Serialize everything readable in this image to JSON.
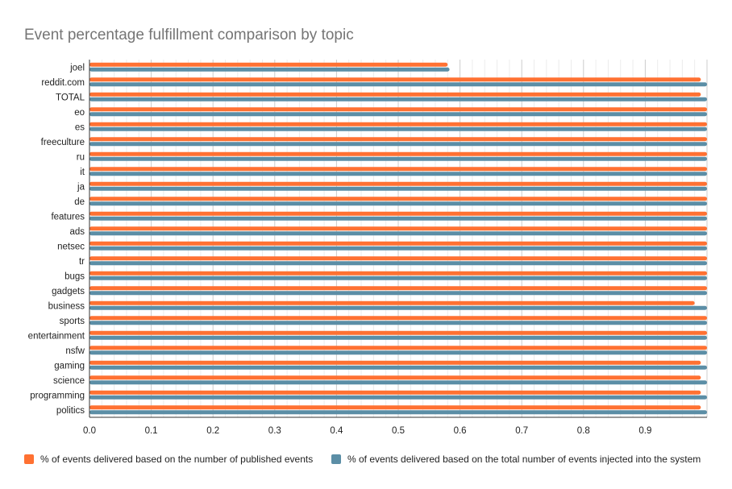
{
  "chart_data": {
    "type": "bar",
    "orientation": "horizontal",
    "title": "Event percentage fulfillment comparison by topic",
    "xlabel": "",
    "ylabel": "",
    "xlim": [
      0,
      1
    ],
    "x_ticks": [
      "0.0",
      "0.1",
      "0.2",
      "0.3",
      "0.4",
      "0.5",
      "0.6",
      "0.7",
      "0.8",
      "0.9"
    ],
    "grid": true,
    "legend_position": "bottom",
    "categories": [
      "joel",
      "reddit.com",
      "TOTAL",
      "eo",
      "es",
      "freeculture",
      "ru",
      "it",
      "ja",
      "de",
      "features",
      "ads",
      "netsec",
      "tr",
      "bugs",
      "gadgets",
      "business",
      "sports",
      "entertainment",
      "nsfw",
      "gaming",
      "science",
      "programming",
      "politics"
    ],
    "series": [
      {
        "name": "% of events delivered based on the number of published events",
        "color": "#ff7132",
        "values": [
          0.58,
          0.99,
          0.99,
          1.0,
          1.0,
          1.0,
          1.0,
          1.0,
          1.0,
          1.0,
          1.0,
          1.0,
          1.0,
          1.0,
          1.0,
          1.0,
          0.98,
          1.0,
          1.0,
          1.0,
          0.99,
          0.99,
          0.99,
          0.99
        ]
      },
      {
        "name": "% of events delivered based on the total number of events injected into the system",
        "color": "#5b8ea6",
        "values": [
          0.583,
          1.0,
          1.0,
          1.0,
          1.0,
          1.0,
          1.0,
          1.0,
          1.0,
          1.0,
          1.0,
          1.0,
          1.0,
          1.0,
          1.0,
          1.0,
          1.0,
          1.0,
          1.0,
          1.0,
          1.0,
          1.0,
          1.0,
          1.0
        ]
      }
    ]
  }
}
